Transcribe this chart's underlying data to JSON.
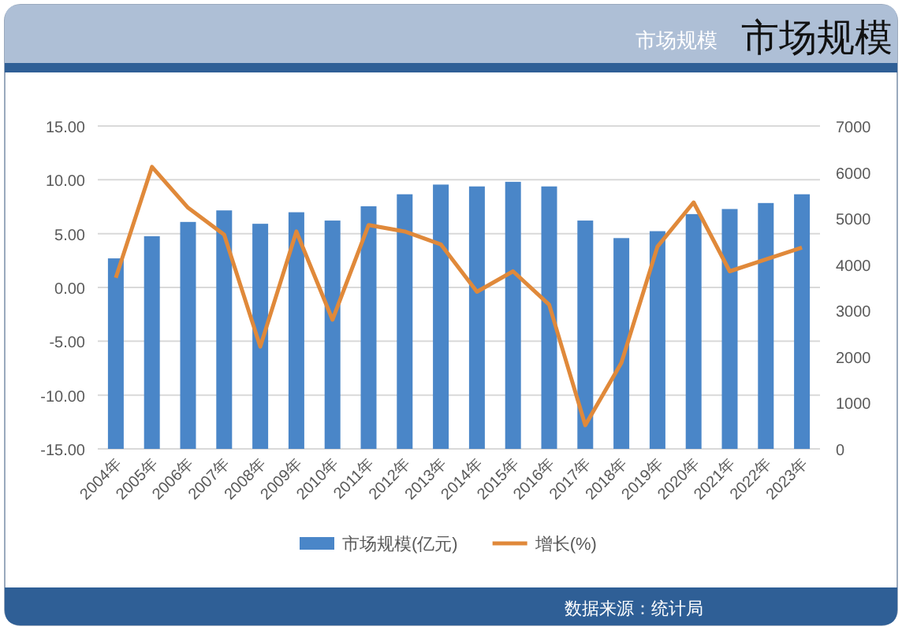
{
  "chart_data": {
    "type": "bar",
    "title": "市场规模",
    "subtitle": "市场规模",
    "categories": [
      "2004年",
      "2005年",
      "2006年",
      "2007年",
      "2008年",
      "2009年",
      "2010年",
      "2011年",
      "2012年",
      "2013年",
      "2014年",
      "2015年",
      "2016年",
      "2017年",
      "2018年",
      "2019年",
      "2020年",
      "2021年",
      "2022年",
      "2023年"
    ],
    "series": [
      {
        "name": "市场规模(亿元)",
        "axis": "y2",
        "color": "#4a86c8",
        "values": [
          4130,
          4610,
          4920,
          5170,
          4880,
          5130,
          4950,
          5260,
          5520,
          5730,
          5690,
          5790,
          5690,
          4950,
          4570,
          4720,
          5090,
          5200,
          5330,
          5520
        ]
      },
      {
        "name": "增长(%)",
        "type": "line",
        "axis": "y",
        "color": "#e0893a",
        "values": [
          0.9,
          11.2,
          7.4,
          4.9,
          -5.5,
          5.2,
          -3.0,
          5.8,
          5.2,
          4.0,
          -0.4,
          1.5,
          -1.6,
          -12.8,
          -7.0,
          3.8,
          7.9,
          1.5,
          2.6,
          3.7
        ]
      }
    ],
    "ylim": [
      -15,
      15
    ],
    "yticks": [
      {
        "value": 15,
        "label": "15.00"
      },
      {
        "value": 10,
        "label": "10.00"
      },
      {
        "value": 5,
        "label": "5.00"
      },
      {
        "value": 0,
        "label": "0.00"
      },
      {
        "value": -5,
        "label": "-5.00"
      },
      {
        "value": -10,
        "label": "-10.00"
      },
      {
        "value": -15,
        "label": "-15.00"
      }
    ],
    "y2lim": [
      0,
      7000
    ],
    "y2ticks": [
      0,
      1000,
      2000,
      3000,
      4000,
      5000,
      6000,
      7000
    ],
    "grid": "y",
    "legend": "bottom",
    "annotations": [
      "数据来源：统计局"
    ]
  }
}
